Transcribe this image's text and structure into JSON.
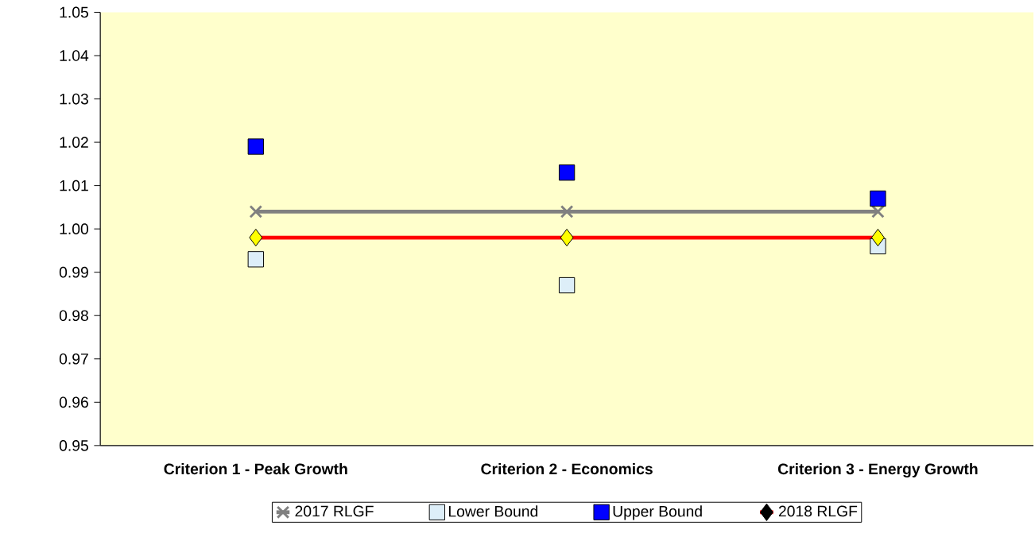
{
  "chart_data": {
    "type": "line",
    "categories": [
      "Criterion 1 - Peak Growth",
      "Criterion 2 - Economics",
      "Criterion 3 - Energy Growth"
    ],
    "series": [
      {
        "name": "2017 RLGF",
        "marker": "cross",
        "color": "#808080",
        "values": [
          1.004,
          1.004,
          1.004
        ]
      },
      {
        "name": "Lower Bound",
        "type": "scatter",
        "marker": "square",
        "color": "#ddeef8",
        "values": [
          0.993,
          0.987,
          0.996
        ]
      },
      {
        "name": "Upper Bound",
        "type": "scatter",
        "marker": "square",
        "color": "#0000ff",
        "values": [
          1.019,
          1.013,
          1.007
        ]
      },
      {
        "name": "2018 RLGF",
        "marker": "diamond",
        "color": "#ff0000",
        "colors": [
          "#ffff00",
          "#ffff00",
          "#ffff00"
        ],
        "values": [
          0.998,
          0.998,
          0.998
        ]
      }
    ],
    "ylim": [
      0.95,
      1.05
    ],
    "yticks": [
      0.95,
      0.96,
      0.97,
      0.98,
      0.99,
      {
        "value": 1,
        "label": "1.00"
      },
      1.01,
      1.02,
      1.03,
      1.04,
      1.05
    ],
    "legend": "bottom"
  }
}
